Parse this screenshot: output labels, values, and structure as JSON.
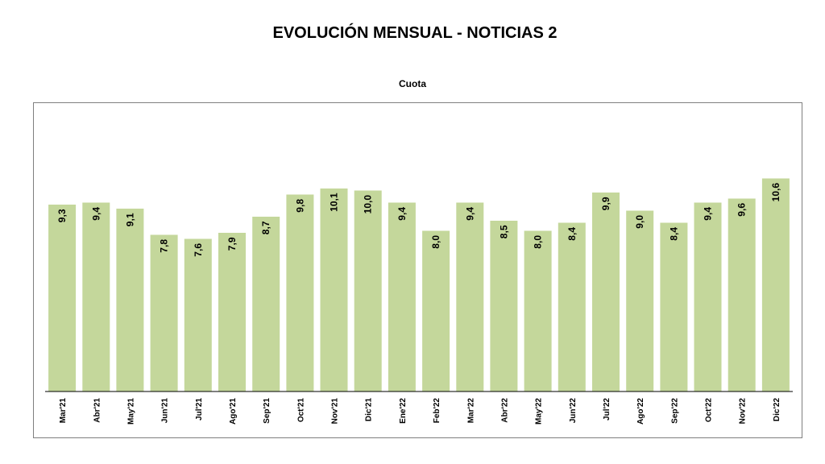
{
  "chart_data": {
    "type": "bar",
    "title": "EVOLUCIÓN MENSUAL - NOTICIAS 2",
    "subtitle": "Cuota",
    "xlabel": "",
    "ylabel": "",
    "categories": [
      "Mar'21",
      "Abr'21",
      "May'21",
      "Jun'21",
      "Jul'21",
      "Ago'21",
      "Sep'21",
      "Oct'21",
      "Nov'21",
      "Dic'21",
      "Ene'22",
      "Feb'22",
      "Mar'22",
      "Abr'22",
      "May'22",
      "Jun'22",
      "Jul'22",
      "Ago'22",
      "Sep'22",
      "Oct'22",
      "Nov'22",
      "Dic'22"
    ],
    "values": [
      9.3,
      9.4,
      9.1,
      7.8,
      7.6,
      7.9,
      8.7,
      9.8,
      10.1,
      10.0,
      9.4,
      8.0,
      9.4,
      8.5,
      8.0,
      8.4,
      9.9,
      9.0,
      8.4,
      9.4,
      9.6,
      10.6
    ],
    "data_labels": [
      "9,3",
      "9,4",
      "9,1",
      "7,8",
      "7,6",
      "7,9",
      "8,7",
      "9,8",
      "10,1",
      "10,0",
      "9,4",
      "8,0",
      "9,4",
      "8,5",
      "8,0",
      "8,4",
      "9,9",
      "9,0",
      "8,4",
      "9,4",
      "9,6",
      "10,6"
    ],
    "ylim": [
      0,
      11.4
    ],
    "grid": false,
    "legend": "none",
    "colors": {
      "bar": "#c4d79b",
      "axis": "#000000",
      "frame": "#7f7f7f"
    }
  }
}
